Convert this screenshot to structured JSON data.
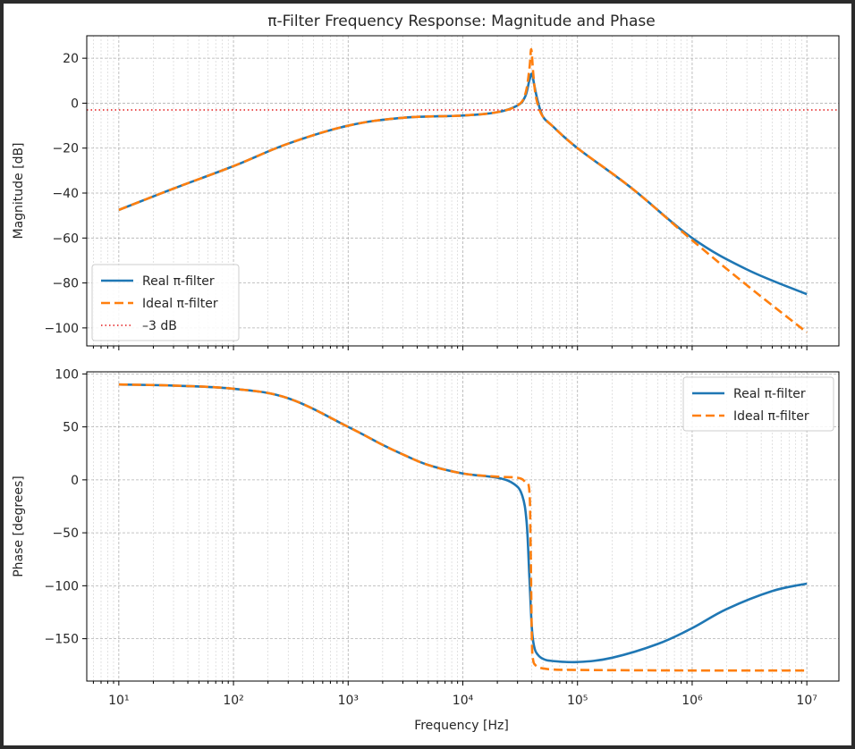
{
  "chart_data": [
    {
      "type": "line",
      "title": "π-Filter Frequency Response: Magnitude and Phase",
      "ylabel": "Magnitude [dB]",
      "xscale": "log",
      "xlim": [
        10,
        10000000
      ],
      "ylim": [
        -108,
        30
      ],
      "yticks": [
        20,
        0,
        -20,
        -40,
        -60,
        -80,
        -100
      ],
      "grid": true,
      "legend_position": "lower-left",
      "colors": {
        "real": "#1f77b4",
        "ideal": "#ff7f0e",
        "ref": "#e31a1c"
      },
      "reference_line": {
        "name": "-3 dB",
        "y": -3,
        "style": "dotted"
      },
      "series": [
        {
          "name": "Real π-filter",
          "style": "solid",
          "x": [
            10,
            30,
            100,
            300,
            1000,
            3000,
            10000,
            20000,
            30000,
            35000,
            38000,
            40000,
            42000,
            45000,
            50000,
            60000,
            100000,
            300000,
            1000000,
            3000000,
            10000000
          ],
          "y": [
            -47.5,
            -38,
            -28,
            -18,
            -10,
            -6.5,
            -5.5,
            -4,
            -1,
            3,
            10,
            13,
            8,
            1,
            -6,
            -10,
            -20,
            -38,
            -60,
            -74,
            -85
          ]
        },
        {
          "name": "Ideal π-filter",
          "style": "dashed",
          "x": [
            10,
            30,
            100,
            300,
            1000,
            3000,
            10000,
            20000,
            30000,
            35000,
            38000,
            39500,
            41000,
            43000,
            46000,
            50000,
            60000,
            100000,
            300000,
            1000000,
            3000000,
            10000000
          ],
          "y": [
            -47.5,
            -38,
            -28,
            -18,
            -10,
            -6.5,
            -5.5,
            -4,
            -1,
            4,
            15,
            24,
            14,
            4,
            -2,
            -6,
            -10,
            -20,
            -38,
            -61,
            -81,
            -102
          ]
        }
      ]
    },
    {
      "type": "line",
      "xlabel": "Frequency [Hz]",
      "ylabel": "Phase [degrees]",
      "xscale": "log",
      "xlim": [
        10,
        10000000
      ],
      "ylim": [
        -190,
        102
      ],
      "yticks": [
        100,
        50,
        0,
        -50,
        -100,
        -150
      ],
      "xticks": [
        "10¹",
        "10²",
        "10³",
        "10⁴",
        "10⁵",
        "10⁶",
        "10⁷"
      ],
      "grid": true,
      "legend_position": "upper-right",
      "colors": {
        "real": "#1f77b4",
        "ideal": "#ff7f0e"
      },
      "series": [
        {
          "name": "Real π-filter",
          "style": "solid",
          "x": [
            10,
            30,
            100,
            300,
            1000,
            2000,
            3000,
            5000,
            10000,
            20000,
            28000,
            33000,
            36000,
            38000,
            40000,
            42000,
            45000,
            50000,
            60000,
            100000,
            200000,
            500000,
            1000000,
            2000000,
            5000000,
            10000000
          ],
          "y": [
            90,
            89,
            86,
            77,
            50,
            33,
            24,
            14,
            6,
            2,
            -4,
            -15,
            -40,
            -90,
            -140,
            -158,
            -165,
            -169,
            -171,
            -172,
            -168,
            -155,
            -140,
            -122,
            -105,
            -98
          ]
        },
        {
          "name": "Ideal π-filter",
          "style": "dashed",
          "x": [
            10,
            30,
            100,
            300,
            1000,
            2000,
            3000,
            5000,
            10000,
            20000,
            30000,
            35000,
            38000,
            39000,
            40000,
            41000,
            43000,
            46000,
            50000,
            60000,
            100000,
            1000000,
            10000000
          ],
          "y": [
            90,
            89,
            86,
            77,
            50,
            33,
            24,
            14,
            6,
            3,
            2,
            -2,
            -10,
            -60,
            -150,
            -170,
            -175,
            -177,
            -178,
            -179,
            -179.5,
            -180,
            -180
          ]
        }
      ]
    }
  ]
}
